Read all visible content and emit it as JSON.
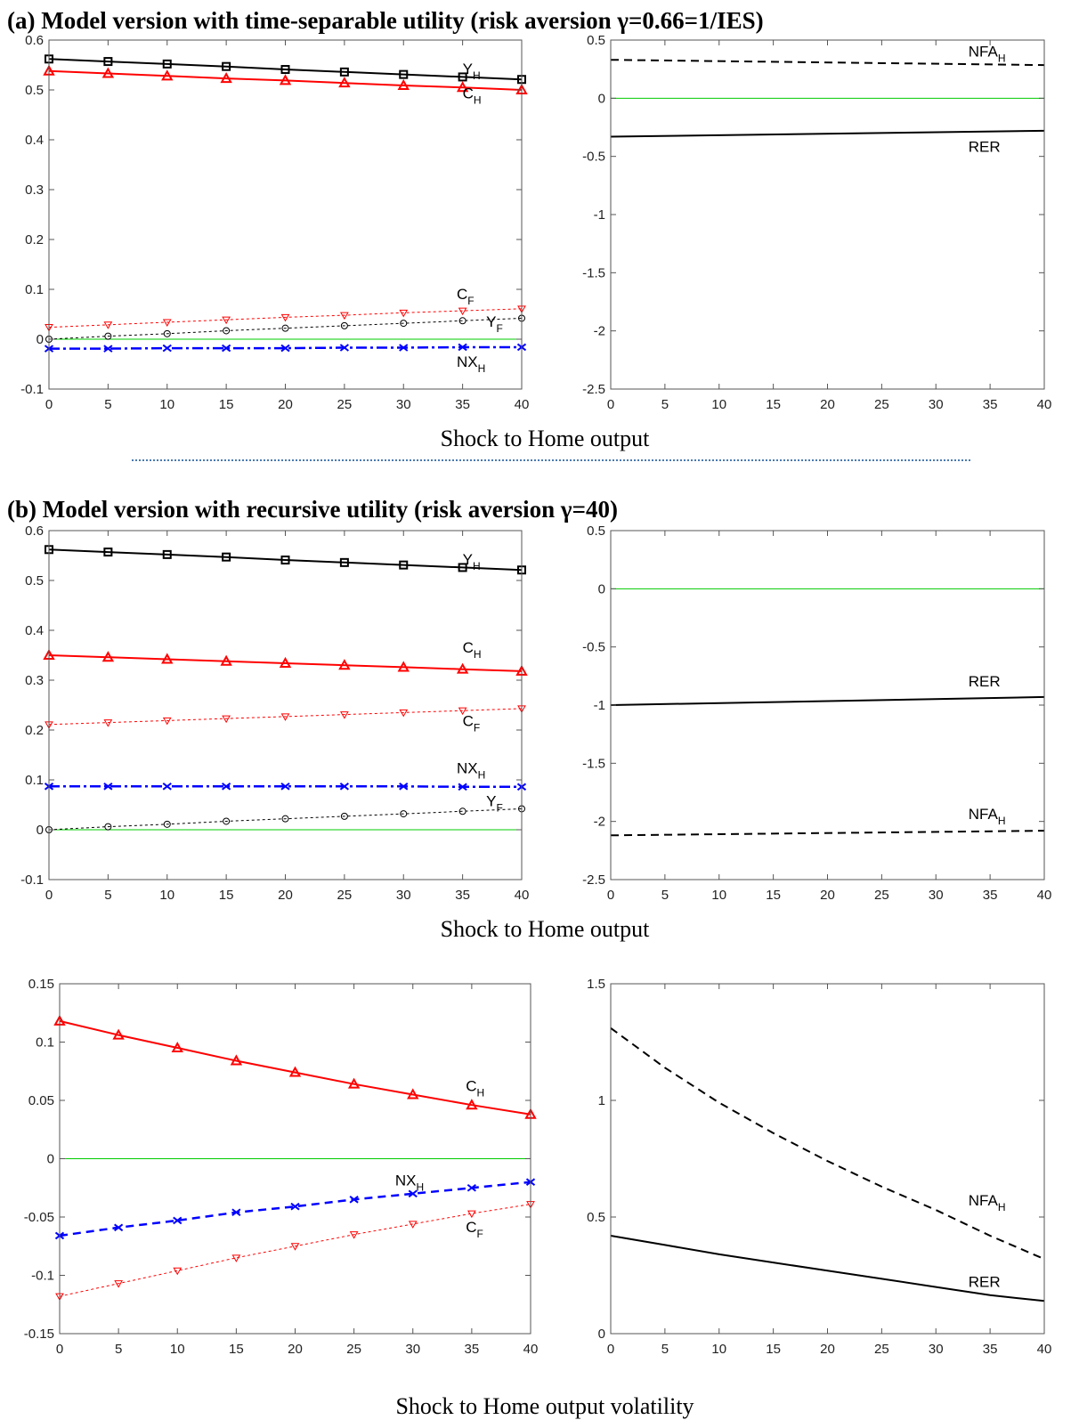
{
  "section_a_title": "(a) Model version with time-separable utility (risk aversion γ=0.66=1/IES)",
  "section_b_title": "(b) Model version with recursive utility (risk aversion γ=40)",
  "xlabel_a": "Shock to Home output",
  "xlabel_b": "Shock to Home output",
  "xlabel_c": "Shock to Home output volatility",
  "colors": {
    "black": "#000000",
    "red": "#ff0000",
    "blue": "#0000ff",
    "green": "#00cc00",
    "divider": "#4a7ab0"
  },
  "chart_data": [
    {
      "id": "a-left",
      "type": "line",
      "xlim": [
        0,
        40
      ],
      "ylim": [
        -0.1,
        0.6
      ],
      "xticks": [
        0,
        5,
        10,
        15,
        20,
        25,
        30,
        35,
        40
      ],
      "yticks": [
        -0.1,
        0,
        0.1,
        0.2,
        0.3,
        0.4,
        0.5,
        0.6
      ],
      "ytick_labels": [
        "-0.1",
        "0",
        "0.1",
        "0.2",
        "0.3",
        "0.4",
        "0.5",
        "0.6"
      ],
      "zero_line": true,
      "series": [
        {
          "name": "Y",
          "sub": "H",
          "color": "black",
          "style": "solid",
          "width": 2,
          "marker": "square",
          "x": [
            0,
            5,
            10,
            15,
            20,
            25,
            30,
            35,
            40
          ],
          "values": [
            0.562,
            0.557,
            0.552,
            0.547,
            0.541,
            0.536,
            0.531,
            0.526,
            0.521
          ],
          "label_at": [
            35,
            0.532
          ]
        },
        {
          "name": "C",
          "sub": "H",
          "color": "red",
          "style": "solid",
          "width": 2,
          "marker": "triangle",
          "x": [
            0,
            5,
            10,
            15,
            20,
            25,
            30,
            35,
            40
          ],
          "values": [
            0.538,
            0.533,
            0.528,
            0.523,
            0.519,
            0.514,
            0.509,
            0.505,
            0.5
          ],
          "label_at": [
            35,
            0.483
          ]
        },
        {
          "name": "C",
          "sub": "F",
          "color": "red",
          "style": "dotted",
          "width": 1,
          "marker": "tri-down",
          "x": [
            0,
            5,
            10,
            15,
            20,
            25,
            30,
            35,
            40
          ],
          "values": [
            0.024,
            0.029,
            0.034,
            0.039,
            0.044,
            0.048,
            0.053,
            0.057,
            0.061
          ],
          "label_at": [
            34.5,
            0.08
          ]
        },
        {
          "name": "Y",
          "sub": "F",
          "color": "black",
          "style": "dotted",
          "width": 1,
          "marker": "circle",
          "x": [
            0,
            5,
            10,
            15,
            20,
            25,
            30,
            35,
            40
          ],
          "values": [
            0.0,
            0.006,
            0.011,
            0.017,
            0.022,
            0.027,
            0.032,
            0.037,
            0.042
          ],
          "label_at": [
            37,
            0.025
          ]
        },
        {
          "name": "NX",
          "sub": "H",
          "color": "blue",
          "style": "dashdot",
          "width": 2.5,
          "marker": "x",
          "x": [
            0,
            5,
            10,
            15,
            20,
            25,
            30,
            35,
            40
          ],
          "values": [
            -0.019,
            -0.019,
            -0.018,
            -0.018,
            -0.018,
            -0.017,
            -0.017,
            -0.016,
            -0.016
          ],
          "label_at": [
            34.5,
            -0.055
          ]
        }
      ]
    },
    {
      "id": "a-right",
      "type": "line",
      "xlim": [
        0,
        40
      ],
      "ylim": [
        -2.5,
        0.5
      ],
      "xticks": [
        0,
        5,
        10,
        15,
        20,
        25,
        30,
        35,
        40
      ],
      "yticks": [
        -2.5,
        -2,
        -1.5,
        -1,
        -0.5,
        0,
        0.5
      ],
      "ytick_labels": [
        "-2.5",
        "-2",
        "-1.5",
        "-1",
        "-0.5",
        "0",
        "0.5"
      ],
      "zero_line": true,
      "series": [
        {
          "name": "NFA",
          "sub": "H",
          "color": "black",
          "style": "dashed",
          "width": 2,
          "marker": "none",
          "x": [
            0,
            40
          ],
          "values": [
            0.33,
            0.285
          ],
          "label_at": [
            33,
            0.36
          ]
        },
        {
          "name": "RER",
          "sub": "",
          "color": "black",
          "style": "solid",
          "width": 2,
          "marker": "none",
          "x": [
            0,
            40
          ],
          "values": [
            -0.33,
            -0.28
          ],
          "label_at": [
            33,
            -0.46
          ]
        }
      ]
    },
    {
      "id": "b-left",
      "type": "line",
      "xlim": [
        0,
        40
      ],
      "ylim": [
        -0.1,
        0.6
      ],
      "xticks": [
        0,
        5,
        10,
        15,
        20,
        25,
        30,
        35,
        40
      ],
      "yticks": [
        -0.1,
        0,
        0.1,
        0.2,
        0.3,
        0.4,
        0.5,
        0.6
      ],
      "ytick_labels": [
        "-0.1",
        "0",
        "0.1",
        "0.2",
        "0.3",
        "0.4",
        "0.5",
        "0.6"
      ],
      "zero_line": true,
      "series": [
        {
          "name": "Y",
          "sub": "H",
          "color": "black",
          "style": "solid",
          "width": 2,
          "marker": "square",
          "x": [
            0,
            5,
            10,
            15,
            20,
            25,
            30,
            35,
            40
          ],
          "values": [
            0.562,
            0.557,
            0.552,
            0.547,
            0.541,
            0.536,
            0.531,
            0.526,
            0.521
          ],
          "label_at": [
            35,
            0.532
          ]
        },
        {
          "name": "C",
          "sub": "H",
          "color": "red",
          "style": "solid",
          "width": 2,
          "marker": "triangle",
          "x": [
            0,
            5,
            10,
            15,
            20,
            25,
            30,
            35,
            40
          ],
          "values": [
            0.35,
            0.346,
            0.342,
            0.338,
            0.334,
            0.33,
            0.326,
            0.322,
            0.318
          ],
          "label_at": [
            35,
            0.355
          ]
        },
        {
          "name": "C",
          "sub": "F",
          "color": "red",
          "style": "dotted",
          "width": 1,
          "marker": "tri-down",
          "x": [
            0,
            5,
            10,
            15,
            20,
            25,
            30,
            35,
            40
          ],
          "values": [
            0.211,
            0.215,
            0.219,
            0.223,
            0.227,
            0.231,
            0.235,
            0.239,
            0.243
          ],
          "label_at": [
            35,
            0.208
          ]
        },
        {
          "name": "NX",
          "sub": "H",
          "color": "blue",
          "style": "dashdot",
          "width": 2.5,
          "marker": "x",
          "x": [
            0,
            5,
            10,
            15,
            20,
            25,
            30,
            35,
            40
          ],
          "values": [
            0.087,
            0.087,
            0.087,
            0.087,
            0.087,
            0.087,
            0.087,
            0.086,
            0.086
          ],
          "label_at": [
            34.5,
            0.113
          ]
        },
        {
          "name": "Y",
          "sub": "F",
          "color": "black",
          "style": "dotted",
          "width": 1,
          "marker": "circle",
          "x": [
            0,
            5,
            10,
            15,
            20,
            25,
            30,
            35,
            40
          ],
          "values": [
            0.0,
            0.006,
            0.011,
            0.017,
            0.022,
            0.027,
            0.032,
            0.037,
            0.042
          ],
          "label_at": [
            37,
            0.047
          ]
        }
      ]
    },
    {
      "id": "b-right",
      "type": "line",
      "xlim": [
        0,
        40
      ],
      "ylim": [
        -2.5,
        0.5
      ],
      "xticks": [
        0,
        5,
        10,
        15,
        20,
        25,
        30,
        35,
        40
      ],
      "yticks": [
        -2.5,
        -2,
        -1.5,
        -1,
        -0.5,
        0,
        0.5
      ],
      "ytick_labels": [
        "-2.5",
        "-2",
        "-1.5",
        "-1",
        "-0.5",
        "0",
        "0.5"
      ],
      "zero_line": true,
      "series": [
        {
          "name": "RER",
          "sub": "",
          "color": "black",
          "style": "solid",
          "width": 2,
          "marker": "none",
          "x": [
            0,
            40
          ],
          "values": [
            -1.0,
            -0.93
          ],
          "label_at": [
            33,
            -0.84
          ]
        },
        {
          "name": "NFA",
          "sub": "H",
          "color": "black",
          "style": "dashed",
          "width": 2,
          "marker": "none",
          "x": [
            0,
            40
          ],
          "values": [
            -2.12,
            -2.08
          ],
          "label_at": [
            33,
            -1.98
          ]
        }
      ]
    },
    {
      "id": "c-left",
      "type": "line",
      "xlim": [
        0,
        40
      ],
      "ylim": [
        -0.15,
        0.15
      ],
      "xticks": [
        0,
        5,
        10,
        15,
        20,
        25,
        30,
        35,
        40
      ],
      "yticks": [
        -0.15,
        -0.1,
        -0.05,
        0,
        0.05,
        0.1,
        0.15
      ],
      "ytick_labels": [
        "-0.15",
        "-0.1",
        "-0.05",
        "0",
        "0.05",
        "0.1",
        "0.15"
      ],
      "zero_line": true,
      "series": [
        {
          "name": "C",
          "sub": "H",
          "color": "red",
          "style": "solid",
          "width": 2,
          "marker": "triangle",
          "x": [
            0,
            5,
            10,
            15,
            20,
            25,
            30,
            35,
            40
          ],
          "values": [
            0.118,
            0.106,
            0.095,
            0.084,
            0.074,
            0.064,
            0.055,
            0.046,
            0.038
          ],
          "label_at": [
            34.5,
            0.058
          ]
        },
        {
          "name": "NX",
          "sub": "H",
          "color": "blue",
          "style": "dashed",
          "width": 2.5,
          "marker": "x",
          "x": [
            0,
            5,
            10,
            15,
            20,
            25,
            30,
            35,
            40
          ],
          "values": [
            -0.066,
            -0.059,
            -0.053,
            -0.046,
            -0.041,
            -0.035,
            -0.03,
            -0.025,
            -0.02
          ],
          "label_at": [
            28.5,
            -0.023
          ]
        },
        {
          "name": "C",
          "sub": "F",
          "color": "red",
          "style": "dotted",
          "width": 1,
          "marker": "tri-down",
          "x": [
            0,
            5,
            10,
            15,
            20,
            25,
            30,
            35,
            40
          ],
          "values": [
            -0.118,
            -0.107,
            -0.096,
            -0.085,
            -0.075,
            -0.065,
            -0.056,
            -0.047,
            -0.039
          ],
          "label_at": [
            34.5,
            -0.063
          ]
        }
      ]
    },
    {
      "id": "c-right",
      "type": "line",
      "xlim": [
        0,
        40
      ],
      "ylim": [
        0,
        1.5
      ],
      "xticks": [
        0,
        5,
        10,
        15,
        20,
        25,
        30,
        35,
        40
      ],
      "yticks": [
        0,
        0.5,
        1,
        1.5
      ],
      "ytick_labels": [
        "0",
        "0.5",
        "1",
        "1.5"
      ],
      "zero_line": true,
      "series": [
        {
          "name": "NFA",
          "sub": "H",
          "color": "black",
          "style": "dashed",
          "width": 2,
          "marker": "none",
          "x": [
            0,
            5,
            10,
            15,
            20,
            25,
            30,
            35,
            40
          ],
          "values": [
            1.31,
            1.14,
            0.99,
            0.86,
            0.74,
            0.63,
            0.53,
            0.42,
            0.32
          ],
          "label_at": [
            33,
            0.55
          ]
        },
        {
          "name": "RER",
          "sub": "",
          "color": "black",
          "style": "solid",
          "width": 2,
          "marker": "none",
          "x": [
            0,
            5,
            10,
            15,
            20,
            25,
            30,
            35,
            40
          ],
          "values": [
            0.42,
            0.38,
            0.34,
            0.305,
            0.27,
            0.235,
            0.2,
            0.165,
            0.14
          ],
          "label_at": [
            33,
            0.2
          ]
        }
      ]
    }
  ]
}
